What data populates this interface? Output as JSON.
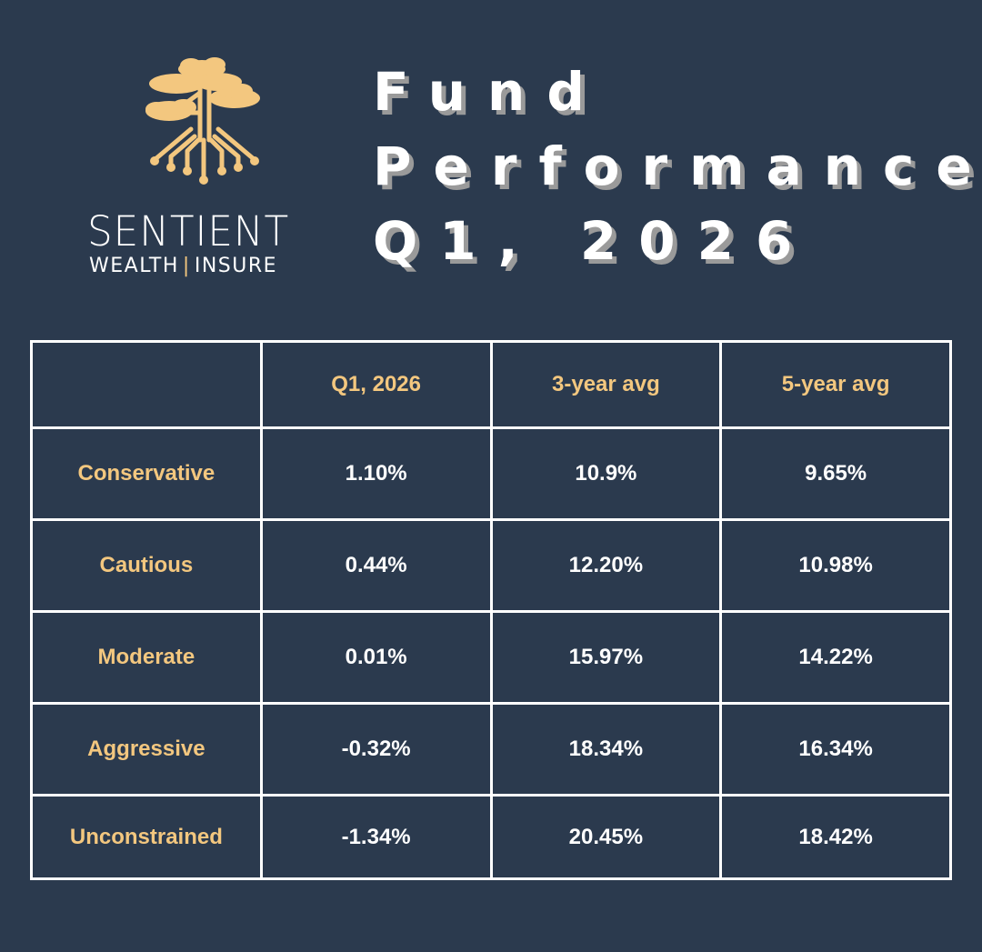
{
  "brand": {
    "name": "SENTIENT",
    "subtitle_left": "WEALTH",
    "subtitle_sep": "|",
    "subtitle_right": "INSURE",
    "accent_color": "#f3c77f",
    "logo_icon": "tree-circuit-icon"
  },
  "title": {
    "line1": "Fund",
    "line2": "Performance",
    "line3": "Q1, 2026"
  },
  "table": {
    "headers": [
      "",
      "Q1, 2026",
      "3-year avg",
      "5-year avg"
    ],
    "rows": [
      {
        "label": "Conservative",
        "values": [
          "1.10%",
          "10.9%",
          "9.65%"
        ]
      },
      {
        "label": "Cautious",
        "values": [
          "0.44%",
          "12.20%",
          "10.98%"
        ]
      },
      {
        "label": "Moderate",
        "values": [
          "0.01%",
          "15.97%",
          "14.22%"
        ]
      },
      {
        "label": "Aggressive",
        "values": [
          "-0.32%",
          "18.34%",
          "16.34%"
        ]
      },
      {
        "label": "Unconstrained",
        "values": [
          "-1.34%",
          "20.45%",
          "18.42%"
        ]
      }
    ]
  },
  "colors": {
    "background": "#2b3a4e",
    "label": "#f3c77f",
    "value": "#ffffff"
  }
}
